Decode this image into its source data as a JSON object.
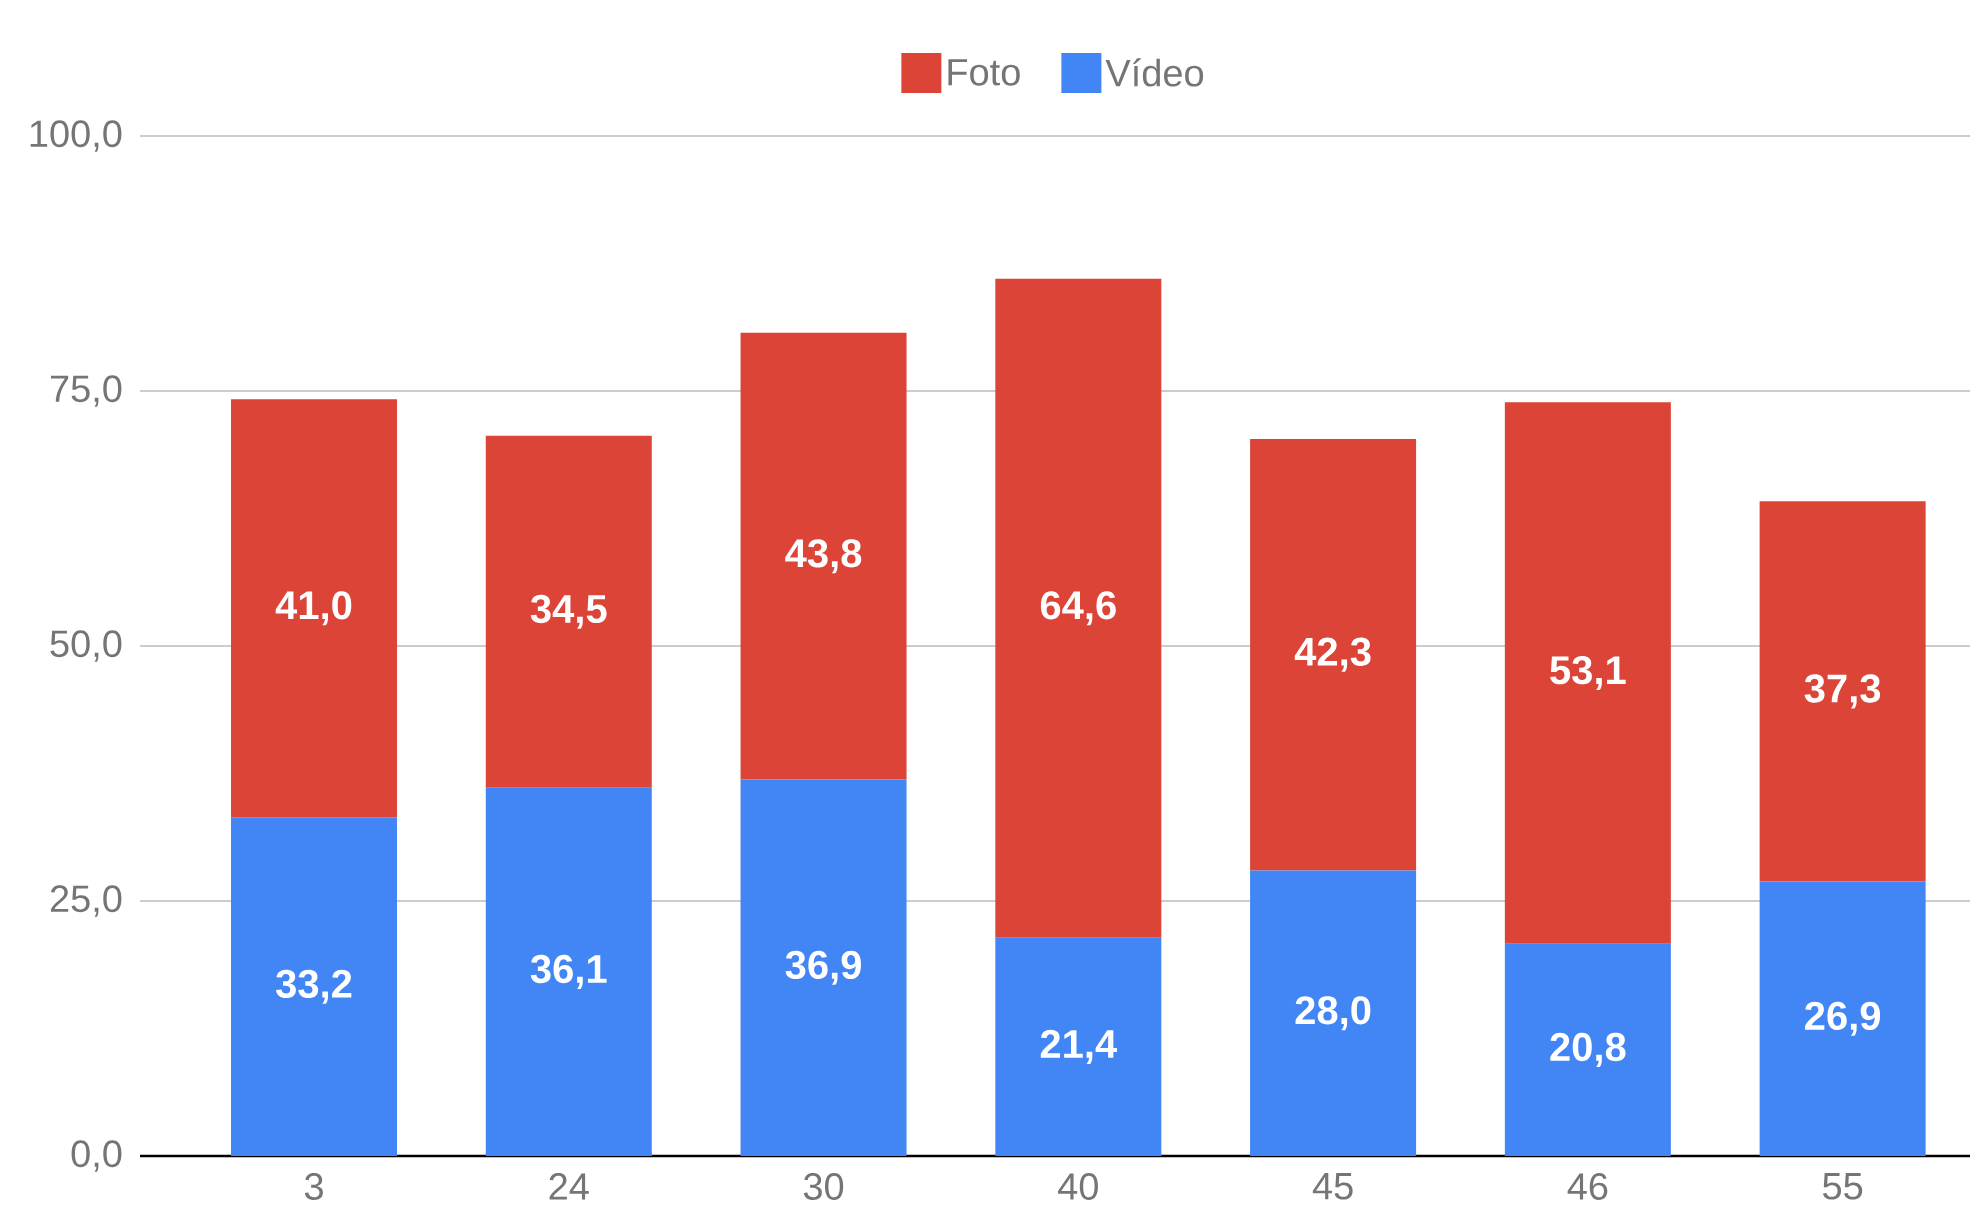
{
  "chart_data": {
    "type": "bar",
    "stacked": true,
    "categories": [
      "3",
      "24",
      "30",
      "40",
      "45",
      "46",
      "55"
    ],
    "series": [
      {
        "name": "Vídeo",
        "color": "#4285f4",
        "values": [
          33.2,
          36.1,
          36.9,
          21.4,
          28.0,
          20.8,
          26.9
        ],
        "value_labels": [
          "33,2",
          "36,1",
          "36,9",
          "21,4",
          "28,0",
          "20,8",
          "26,9"
        ]
      },
      {
        "name": "Foto",
        "color": "#db4437",
        "values": [
          41.0,
          34.5,
          43.8,
          64.6,
          42.3,
          53.1,
          37.3
        ],
        "value_labels": [
          "41,0",
          "34,5",
          "43,8",
          "64,6",
          "42,3",
          "53,1",
          "37,3"
        ]
      }
    ],
    "ylim": [
      0,
      100
    ],
    "yticks": [
      {
        "value": 0,
        "label": "0,0"
      },
      {
        "value": 25,
        "label": "25,0"
      },
      {
        "value": 50,
        "label": "50,0"
      },
      {
        "value": 75,
        "label": "75,0"
      },
      {
        "value": 100,
        "label": "100,0"
      }
    ],
    "grid": "y",
    "legend": "top"
  }
}
